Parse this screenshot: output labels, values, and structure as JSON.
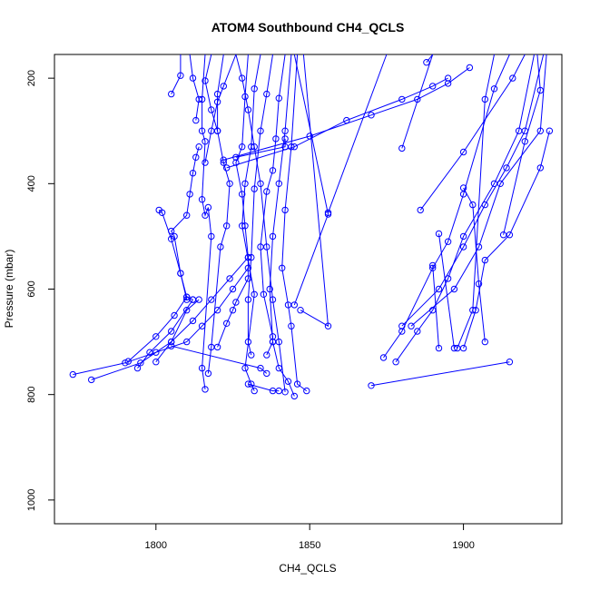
{
  "chart_data": {
    "type": "line",
    "title": "ATOM4 Southbound CH4_QCLS",
    "xlabel": "CH4_QCLS",
    "ylabel": "Pressure (mbar)",
    "xlim": [
      1767,
      1932
    ],
    "ylim": [
      1045,
      155
    ],
    "y_reversed": true,
    "x_ticks": [
      1800,
      1850,
      1900
    ],
    "y_ticks": [
      200,
      400,
      600,
      800,
      1000
    ],
    "grid": false,
    "legend": "none",
    "marker": "open-circle",
    "color": "#0000ff",
    "series": [
      {
        "points": [
          [
            1808,
            155
          ],
          [
            1808,
            195
          ],
          [
            1805,
            230
          ]
        ]
      },
      {
        "points": [
          [
            1811,
            155
          ],
          [
            1812,
            200
          ],
          [
            1814,
            240
          ],
          [
            1813,
            280
          ]
        ]
      },
      {
        "points": [
          [
            1818,
            155
          ],
          [
            1816,
            205
          ],
          [
            1818,
            260
          ],
          [
            1820,
            300
          ]
        ]
      },
      {
        "points": [
          [
            1826,
            155
          ],
          [
            1822,
            215
          ],
          [
            1820,
            245
          ],
          [
            1818,
            300
          ],
          [
            1816,
            360
          ]
        ]
      },
      {
        "points": [
          [
            1814,
            330
          ],
          [
            1813,
            350
          ],
          [
            1812,
            380
          ],
          [
            1811,
            420
          ],
          [
            1810,
            460
          ],
          [
            1805,
            490
          ],
          [
            1806,
            500
          ],
          [
            1808,
            570
          ],
          [
            1810,
            615
          ],
          [
            1812,
            620
          ]
        ]
      },
      {
        "points": [
          [
            1801,
            450
          ],
          [
            1802,
            455
          ],
          [
            1805,
            505
          ],
          [
            1808,
            570
          ],
          [
            1810,
            620
          ]
        ]
      },
      {
        "points": [
          [
            1816,
            155
          ],
          [
            1815,
            240
          ],
          [
            1815,
            300
          ],
          [
            1816,
            320
          ],
          [
            1815,
            430
          ],
          [
            1816,
            460
          ],
          [
            1817,
            445
          ],
          [
            1818,
            500
          ],
          [
            1815,
            750
          ],
          [
            1816,
            790
          ]
        ]
      },
      {
        "points": [
          [
            1822,
            155
          ],
          [
            1820,
            230
          ],
          [
            1820,
            300
          ],
          [
            1822,
            360
          ],
          [
            1824,
            400
          ],
          [
            1823,
            480
          ],
          [
            1821,
            520
          ],
          [
            1818,
            710
          ],
          [
            1817,
            760
          ]
        ]
      },
      {
        "points": [
          [
            1830,
            155
          ],
          [
            1829,
            235
          ],
          [
            1828,
            330
          ],
          [
            1826,
            360
          ],
          [
            1828,
            420
          ],
          [
            1829,
            480
          ],
          [
            1830,
            540
          ],
          [
            1830,
            580
          ],
          [
            1826,
            625
          ],
          [
            1825,
            640
          ],
          [
            1823,
            665
          ],
          [
            1820,
            710
          ]
        ]
      },
      {
        "points": [
          [
            1834,
            155
          ],
          [
            1832,
            220
          ],
          [
            1831,
            330
          ],
          [
            1829,
            400
          ],
          [
            1828,
            480
          ],
          [
            1832,
            610
          ],
          [
            1829,
            750
          ],
          [
            1831,
            780
          ],
          [
            1832,
            793
          ]
        ]
      },
      {
        "points": [
          [
            1838,
            155
          ],
          [
            1836,
            230
          ],
          [
            1834,
            300
          ],
          [
            1832,
            410
          ],
          [
            1831,
            540
          ],
          [
            1830,
            620
          ],
          [
            1830,
            700
          ],
          [
            1831,
            725
          ]
        ]
      },
      {
        "points": [
          [
            1842,
            155
          ],
          [
            1840,
            238
          ],
          [
            1839,
            315
          ],
          [
            1838,
            375
          ],
          [
            1836,
            415
          ],
          [
            1834,
            520
          ],
          [
            1835,
            610
          ],
          [
            1838,
            690
          ],
          [
            1838,
            700
          ],
          [
            1836,
            725
          ]
        ]
      },
      {
        "points": [
          [
            1844,
            155
          ],
          [
            1842,
            300
          ],
          [
            1840,
            400
          ],
          [
            1838,
            500
          ],
          [
            1837,
            600
          ],
          [
            1838,
            700
          ],
          [
            1840,
            750
          ],
          [
            1843,
            775
          ],
          [
            1845,
            803
          ]
        ]
      },
      {
        "points": [
          [
            1846,
            155
          ],
          [
            1844,
            330
          ],
          [
            1842,
            450
          ],
          [
            1841,
            560
          ],
          [
            1843,
            630
          ],
          [
            1844,
            670
          ],
          [
            1846,
            780
          ],
          [
            1849,
            793
          ]
        ]
      },
      {
        "points": [
          [
            1826,
            155
          ],
          [
            1828,
            200
          ],
          [
            1830,
            260
          ],
          [
            1832,
            330
          ],
          [
            1834,
            400
          ],
          [
            1836,
            520
          ],
          [
            1838,
            620
          ],
          [
            1840,
            700
          ],
          [
            1842,
            795
          ]
        ]
      },
      {
        "points": [
          [
            1773,
            762
          ],
          [
            1790,
            740
          ],
          [
            1800,
            720
          ],
          [
            1810,
            700
          ],
          [
            1815,
            670
          ],
          [
            1820,
            640
          ],
          [
            1825,
            600
          ],
          [
            1830,
            560
          ]
        ]
      },
      {
        "points": [
          [
            1779,
            772
          ],
          [
            1795,
            740
          ],
          [
            1805,
            700
          ],
          [
            1812,
            660
          ],
          [
            1818,
            620
          ],
          [
            1824,
            580
          ],
          [
            1830,
            540
          ]
        ]
      },
      {
        "points": [
          [
            1791,
            737
          ],
          [
            1800,
            690
          ],
          [
            1806,
            650
          ],
          [
            1810,
            615
          ]
        ]
      },
      {
        "points": [
          [
            1794,
            750
          ],
          [
            1798,
            720
          ],
          [
            1805,
            680
          ],
          [
            1812,
            620
          ]
        ]
      },
      {
        "points": [
          [
            1800,
            738
          ],
          [
            1805,
            700
          ],
          [
            1810,
            640
          ],
          [
            1814,
            620
          ]
        ]
      },
      {
        "points": [
          [
            1805,
            708
          ],
          [
            1834,
            750
          ],
          [
            1836,
            760
          ]
        ]
      },
      {
        "points": [
          [
            1830,
            780
          ],
          [
            1838,
            793
          ],
          [
            1840,
            793
          ]
        ]
      },
      {
        "points": [
          [
            1823,
            370
          ],
          [
            1845,
            330
          ],
          [
            1862,
            280
          ],
          [
            1880,
            240
          ],
          [
            1890,
            215
          ],
          [
            1895,
            200
          ]
        ]
      },
      {
        "points": [
          [
            1822,
            355
          ],
          [
            1850,
            310
          ],
          [
            1870,
            270
          ],
          [
            1885,
            240
          ],
          [
            1895,
            210
          ],
          [
            1902,
            180
          ]
        ]
      },
      {
        "points": [
          [
            1826,
            350
          ],
          [
            1842,
            330
          ],
          [
            1842,
            315
          ]
        ]
      },
      {
        "points": [
          [
            1845,
            155
          ],
          [
            1856,
            458
          ],
          [
            1845,
            630
          ]
        ]
      },
      {
        "points": [
          [
            1848,
            155
          ],
          [
            1856,
            670
          ],
          [
            1847,
            640
          ]
        ]
      },
      {
        "points": [
          [
            1875,
            155
          ],
          [
            1856,
            455
          ]
        ]
      },
      {
        "points": [
          [
            1870,
            783
          ],
          [
            1915,
            738
          ]
        ]
      },
      {
        "points": [
          [
            1880,
            333
          ],
          [
            1890,
            155
          ]
        ]
      },
      {
        "points": [
          [
            1888,
            170
          ],
          [
            1890,
            155
          ]
        ]
      },
      {
        "points": [
          [
            1886,
            450
          ],
          [
            1900,
            340
          ],
          [
            1916,
            200
          ],
          [
            1920,
            155
          ]
        ]
      },
      {
        "points": [
          [
            1874,
            730
          ],
          [
            1880,
            680
          ],
          [
            1890,
            560
          ],
          [
            1895,
            510
          ],
          [
            1900,
            420
          ],
          [
            1910,
            220
          ],
          [
            1915,
            155
          ]
        ]
      },
      {
        "points": [
          [
            1878,
            738
          ],
          [
            1885,
            680
          ],
          [
            1890,
            640
          ],
          [
            1895,
            580
          ],
          [
            1900,
            500
          ],
          [
            1910,
            400
          ],
          [
            1918,
            300
          ],
          [
            1923,
            155
          ]
        ]
      },
      {
        "points": [
          [
            1880,
            670
          ],
          [
            1892,
            600
          ],
          [
            1900,
            520
          ],
          [
            1907,
            440
          ],
          [
            1914,
            370
          ],
          [
            1920,
            300
          ],
          [
            1926,
            155
          ]
        ]
      },
      {
        "points": [
          [
            1883,
            670
          ],
          [
            1897,
            600
          ],
          [
            1905,
            520
          ],
          [
            1912,
            400
          ],
          [
            1925,
            300
          ],
          [
            1927,
            155
          ]
        ]
      },
      {
        "points": [
          [
            1890,
            555
          ],
          [
            1892,
            712
          ]
        ]
      },
      {
        "points": [
          [
            1892,
            495
          ],
          [
            1897,
            712
          ]
        ]
      },
      {
        "points": [
          [
            1900,
            408
          ],
          [
            1903,
            440
          ],
          [
            1905,
            590
          ],
          [
            1907,
            700
          ]
        ]
      },
      {
        "points": [
          [
            1900,
            712
          ],
          [
            1904,
            640
          ],
          [
            1907,
            545
          ],
          [
            1915,
            497
          ],
          [
            1925,
            370
          ],
          [
            1928,
            300
          ]
        ]
      },
      {
        "points": [
          [
            1898,
            712
          ],
          [
            1903,
            640
          ],
          [
            1907,
            240
          ],
          [
            1910,
            155
          ]
        ]
      },
      {
        "points": [
          [
            1913,
            497
          ],
          [
            1920,
            320
          ],
          [
            1925,
            223
          ],
          [
            1924,
            155
          ]
        ]
      }
    ]
  }
}
